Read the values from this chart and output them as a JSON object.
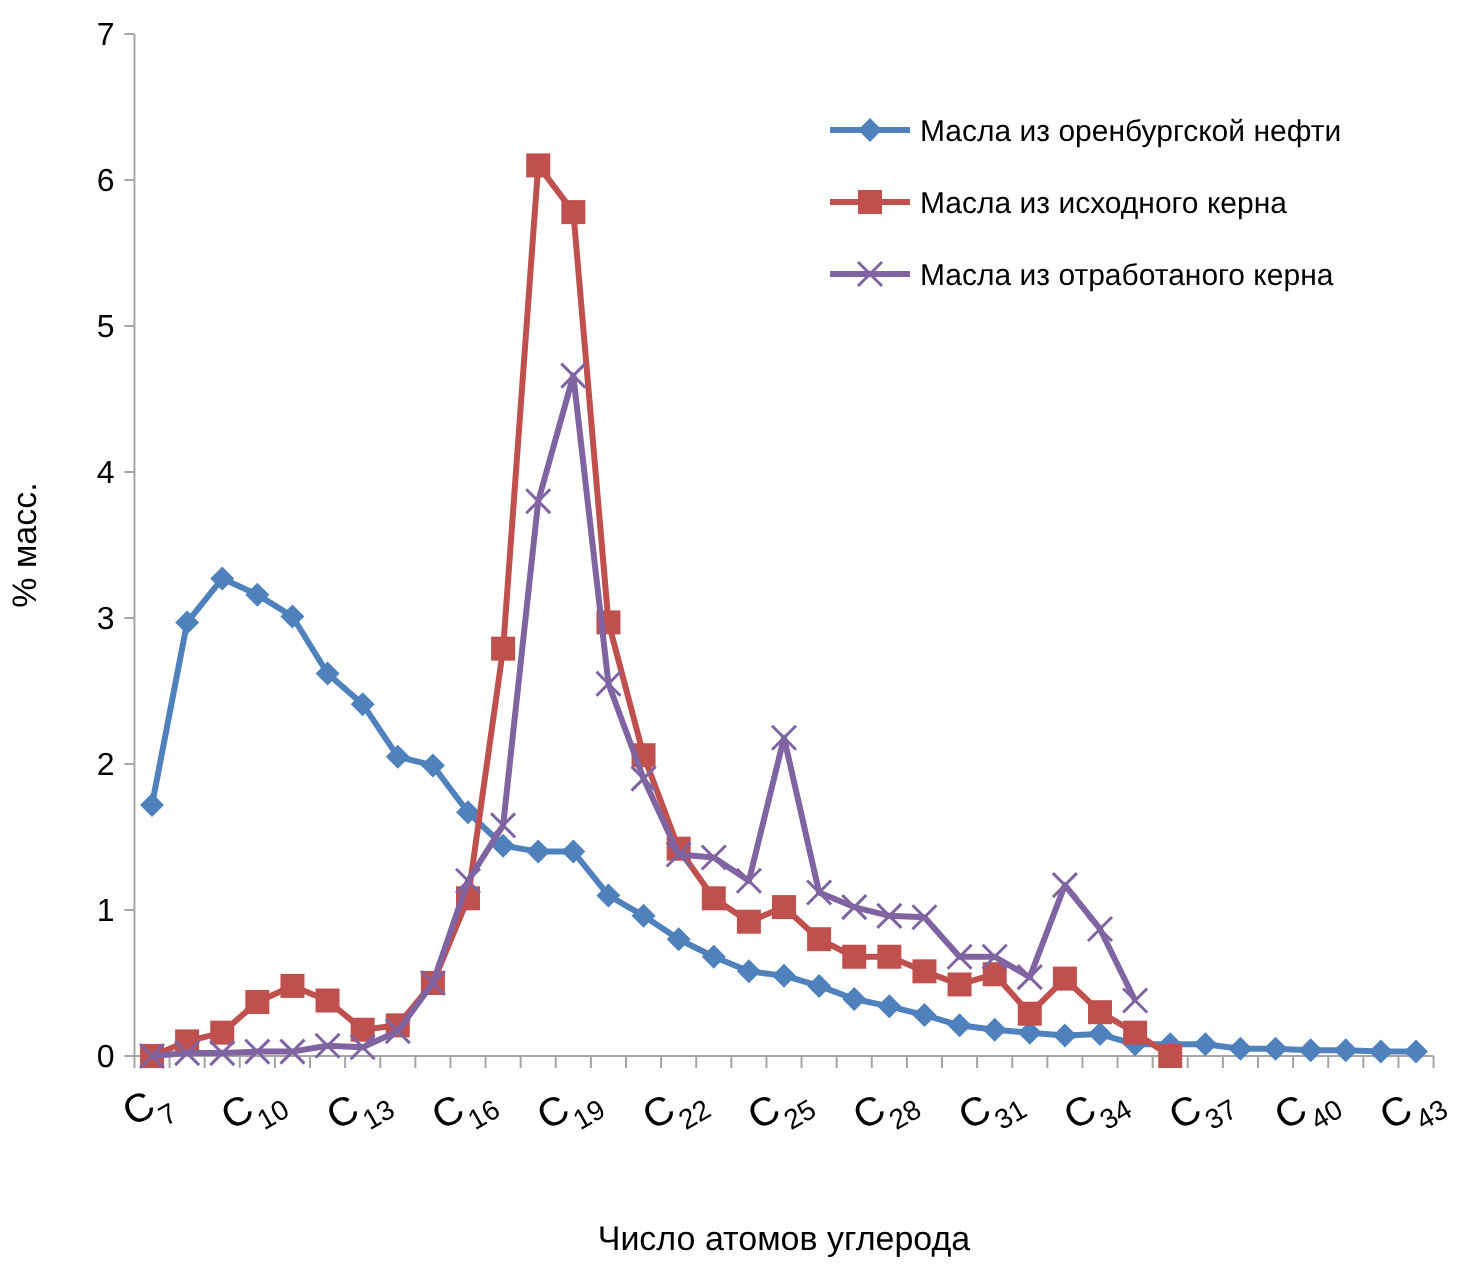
{
  "chart_data": {
    "type": "line",
    "xlabel": "Число атомов углерода",
    "ylabel": "% масс.",
    "categories": [
      "C$_{7}$",
      null,
      null,
      "C$_{10}$",
      null,
      null,
      "C$_{13}$",
      null,
      null,
      "C$_{16}$",
      null,
      null,
      "C$_{19}$",
      null,
      null,
      "C$_{22}$",
      null,
      null,
      "C$_{25}$",
      null,
      null,
      "C$_{28}$",
      null,
      null,
      "C$_{31}$",
      null,
      null,
      "C$_{34}$",
      null,
      null,
      "C$_{37}$",
      null,
      null,
      "C$_{40}$",
      null,
      null,
      "C$_{43}$"
    ],
    "ylim": [
      0,
      7
    ],
    "yticks": [
      0,
      1,
      2,
      3,
      4,
      5,
      6,
      7
    ],
    "grid": false,
    "legend": "top right",
    "series": [
      {
        "name": "Масла из оренбургской нефти",
        "color": "#4f81bd",
        "marker": "diamond",
        "values": [
          1.72,
          2.97,
          3.27,
          3.16,
          3.01,
          2.62,
          2.41,
          2.05,
          1.99,
          1.67,
          1.44,
          1.4,
          1.4,
          1.1,
          0.96,
          0.8,
          0.68,
          0.58,
          0.55,
          0.48,
          0.39,
          0.34,
          0.28,
          0.21,
          0.18,
          0.16,
          0.14,
          0.15,
          0.08,
          0.08,
          0.08,
          0.05,
          0.05,
          0.04,
          0.04,
          0.03,
          0.03
        ]
      },
      {
        "name": "Масла из исходного керна",
        "color": "#c0504d",
        "marker": "square",
        "values": [
          0,
          0.1,
          0.16,
          0.37,
          0.48,
          0.38,
          0.18,
          0.21,
          0.5,
          1.08,
          2.79,
          6.1,
          5.78,
          2.97,
          2.06,
          1.42,
          1.08,
          0.92,
          1.02,
          0.8,
          0.68,
          0.68,
          0.58,
          0.49,
          0.56,
          0.29,
          0.53,
          0.3,
          0.16,
          0,
          null,
          null,
          null,
          null,
          null,
          null,
          null
        ]
      },
      {
        "name": "Масла из отработаного керна",
        "color": "#8064a2",
        "marker": "cross",
        "values": [
          0,
          0.02,
          0.02,
          0.03,
          0.03,
          0.07,
          0.06,
          0.17,
          0.5,
          1.2,
          1.58,
          3.8,
          4.66,
          2.55,
          1.9,
          1.38,
          1.36,
          1.2,
          2.18,
          1.12,
          1.02,
          0.96,
          0.95,
          0.68,
          0.68,
          0.54,
          1.17,
          0.87,
          0.38,
          null,
          null,
          null,
          null,
          null,
          null,
          null,
          null
        ]
      }
    ]
  }
}
